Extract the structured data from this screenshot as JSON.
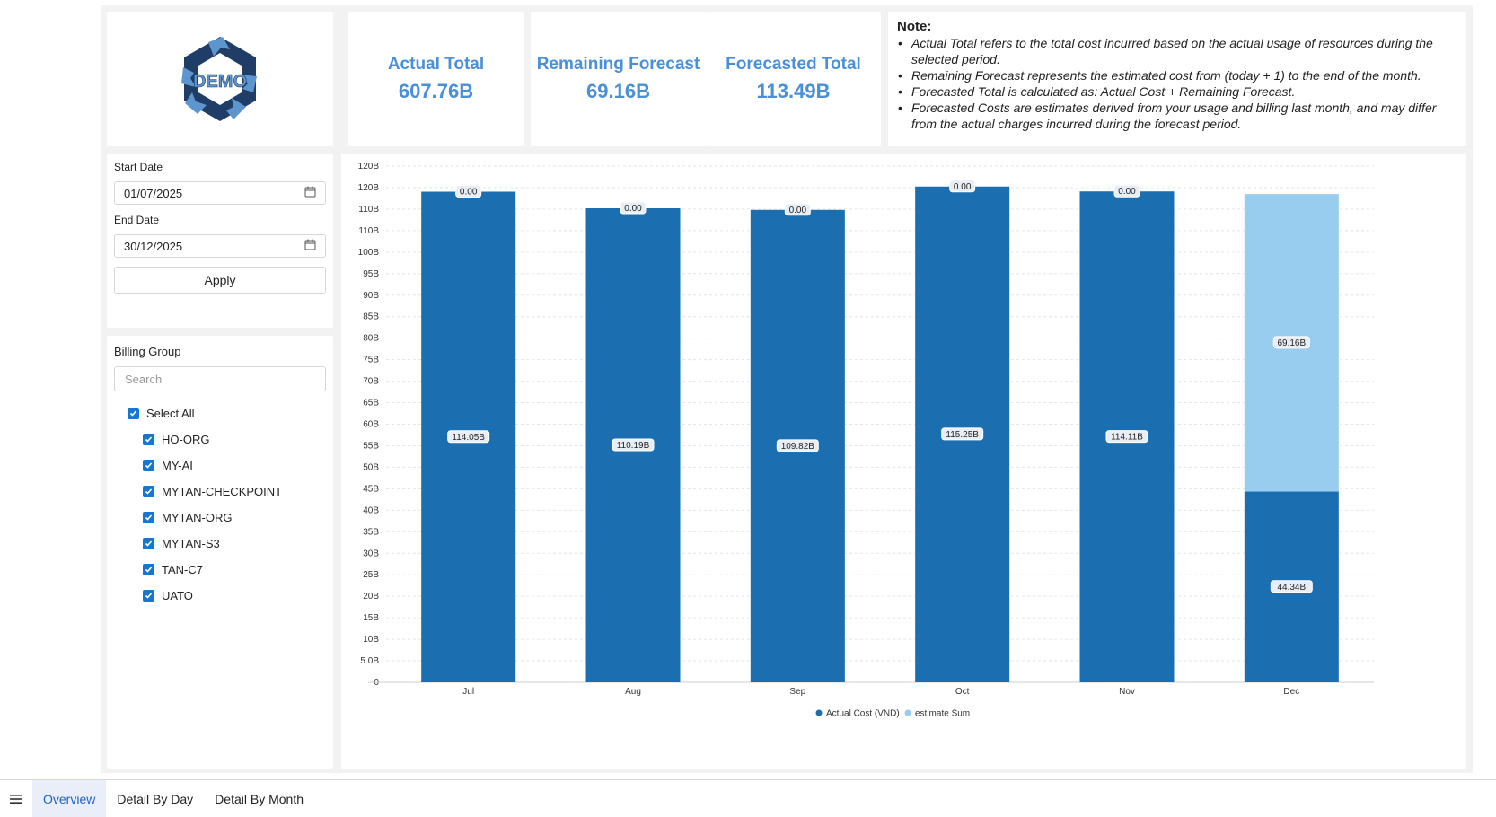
{
  "logo": {
    "text": "DEMO"
  },
  "kpis": [
    {
      "label": "Actual Total",
      "value": "607.76B"
    },
    {
      "label": "Remaining Forecast",
      "value": "69.16B"
    },
    {
      "label": "Forecasted Total",
      "value": "113.49B"
    }
  ],
  "note": {
    "title": "Note:",
    "items": [
      "Actual Total refers to the total cost incurred based on the actual usage of resources during the selected period.",
      "Remaining Forecast represents the estimated cost from (today + 1) to the end of the month.",
      "Forecasted Total is calculated as: Actual Cost + Remaining Forecast.",
      "Forecasted Costs are estimates derived from your usage and billing last month, and may differ from the actual charges incurred during the forecast period."
    ]
  },
  "filters": {
    "start_label": "Start Date",
    "start_value": "01/07/2025",
    "end_label": "End Date",
    "end_value": "30/12/2025",
    "apply_label": "Apply"
  },
  "billing": {
    "title": "Billing Group",
    "search_placeholder": "Search",
    "select_all_label": "Select All",
    "select_all_checked": true,
    "groups": [
      {
        "label": "HO-ORG",
        "checked": true
      },
      {
        "label": "MY-AI",
        "checked": true
      },
      {
        "label": "MYTAN-CHECKPOINT",
        "checked": true
      },
      {
        "label": "MYTAN-ORG",
        "checked": true
      },
      {
        "label": "MYTAN-S3",
        "checked": true
      },
      {
        "label": "TAN-C7",
        "checked": true
      },
      {
        "label": "UATO",
        "checked": true
      }
    ]
  },
  "colors": {
    "accent": "#4a90d9",
    "actual": "#1b6fb0",
    "estimate": "#98cdf0",
    "tab_active_bg": "#e9eef9",
    "tab_active_text": "#1e63c4"
  },
  "chart_data": {
    "type": "bar",
    "stacked": true,
    "categories": [
      "Jul",
      "Aug",
      "Sep",
      "Oct",
      "Nov",
      "Dec"
    ],
    "series": [
      {
        "name": "Actual Cost (VND)",
        "values": [
          114.05,
          110.19,
          109.82,
          115.25,
          114.11,
          44.34
        ],
        "labels": [
          "114.05B",
          "110.19B",
          "109.82B",
          "115.25B",
          "114.11B",
          "44.34B"
        ]
      },
      {
        "name": "estimate Sum",
        "values": [
          0,
          0,
          0,
          0,
          0,
          69.16
        ],
        "labels": [
          "0.00",
          "0.00",
          "0.00",
          "0.00",
          "0.00",
          "69.16B"
        ]
      }
    ],
    "ylim": [
      0,
      120
    ],
    "yticks": [
      "0",
      "5.0B",
      "10B",
      "15B",
      "20B",
      "25B",
      "30B",
      "35B",
      "40B",
      "45B",
      "50B",
      "55B",
      "60B",
      "65B",
      "70B",
      "75B",
      "80B",
      "85B",
      "90B",
      "95B",
      "100B",
      "110B",
      "110B",
      "120B",
      "120B"
    ],
    "grid": true,
    "legend_position": "bottom"
  },
  "tabs": [
    {
      "label": "Overview",
      "active": true
    },
    {
      "label": "Detail By Day",
      "active": false
    },
    {
      "label": "Detail By Month",
      "active": false
    }
  ]
}
